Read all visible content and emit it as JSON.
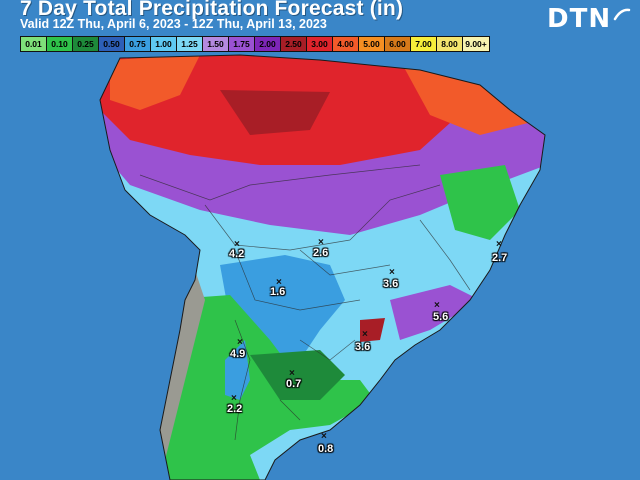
{
  "header": {
    "title": "7 Day Total Precipitation Forecast (in)",
    "subtitle": "Valid 12Z Thu, April 6, 2023 - 12Z Thu, April 13, 2023",
    "logo": "DTN"
  },
  "legend": {
    "items": [
      {
        "label": "0.01",
        "color": "#7fe07a"
      },
      {
        "label": "0.10",
        "color": "#2fc34a"
      },
      {
        "label": "0.25",
        "color": "#1e8a3a"
      },
      {
        "label": "0.50",
        "color": "#2d5fb8"
      },
      {
        "label": "0.75",
        "color": "#3a9ee0"
      },
      {
        "label": "1.00",
        "color": "#5fc9f2"
      },
      {
        "label": "1.25",
        "color": "#7dd8f5"
      },
      {
        "label": "1.50",
        "color": "#b58ae0"
      },
      {
        "label": "1.75",
        "color": "#9a52d2"
      },
      {
        "label": "2.00",
        "color": "#7e26b8"
      },
      {
        "label": "2.50",
        "color": "#a81e26"
      },
      {
        "label": "3.00",
        "color": "#e0242c"
      },
      {
        "label": "4.00",
        "color": "#f25a2a"
      },
      {
        "label": "5.00",
        "color": "#f58f22"
      },
      {
        "label": "6.00",
        "color": "#d77a1a"
      },
      {
        "label": "7.00",
        "color": "#f7ee3a"
      },
      {
        "label": "8.00",
        "color": "#f4e56e"
      },
      {
        "label": "9.00+",
        "color": "#f7f3b0"
      }
    ]
  },
  "map": {
    "ocean_color": "#3a86c8",
    "land_dry_color": "#9a9a92",
    "amounts": [
      {
        "label": "4.2"
      },
      {
        "label": "2.6"
      },
      {
        "label": "2.7"
      },
      {
        "label": "1.6"
      },
      {
        "label": "3.6"
      },
      {
        "label": "5.6"
      },
      {
        "label": "3.6"
      },
      {
        "label": "4.9"
      },
      {
        "label": "0.7"
      },
      {
        "label": "2.2"
      },
      {
        "label": "0.8"
      }
    ]
  }
}
